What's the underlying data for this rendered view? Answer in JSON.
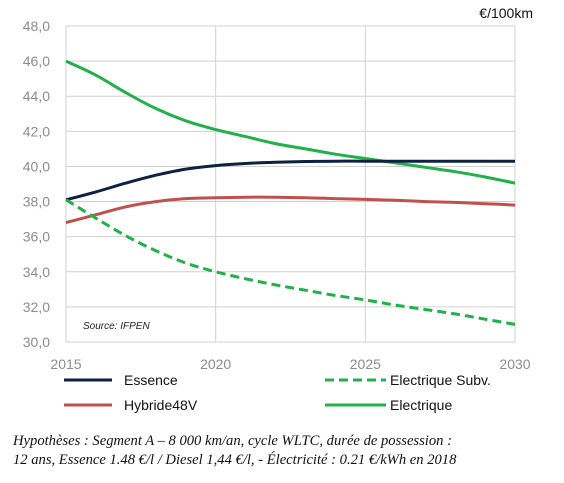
{
  "chart_data": {
    "type": "line",
    "unit": "€/100km",
    "source": "Source: IFPEN",
    "x_ticks": [
      "2015",
      "2020",
      "2025",
      "2030"
    ],
    "y_ticks": [
      "30,0",
      "32,0",
      "34,0",
      "36,0",
      "38,0",
      "40,0",
      "42,0",
      "44,0",
      "46,0",
      "48,0"
    ],
    "xlim": [
      2015,
      2030
    ],
    "ylim": [
      30,
      48
    ],
    "grid": true,
    "legend_position": "bottom",
    "series": [
      {
        "name": "Essence",
        "color": "#0d2240",
        "dash": "solid",
        "points": [
          [
            2015,
            38.1
          ],
          [
            2016,
            38.55
          ],
          [
            2017,
            39.05
          ],
          [
            2018,
            39.5
          ],
          [
            2019,
            39.85
          ],
          [
            2020,
            40.05
          ],
          [
            2021,
            40.17
          ],
          [
            2022,
            40.24
          ],
          [
            2023,
            40.28
          ],
          [
            2024,
            40.3
          ],
          [
            2025,
            40.3
          ],
          [
            2026,
            40.3
          ],
          [
            2027,
            40.3
          ],
          [
            2028,
            40.3
          ],
          [
            2029,
            40.3
          ],
          [
            2030,
            40.3
          ]
        ]
      },
      {
        "name": "Electrique Subv.",
        "color": "#21b04b",
        "dash": "dashed",
        "points": [
          [
            2015,
            38.1
          ],
          [
            2016,
            37.05
          ],
          [
            2017,
            36.05
          ],
          [
            2018,
            35.2
          ],
          [
            2019,
            34.5
          ],
          [
            2020,
            34.0
          ],
          [
            2021,
            33.6
          ],
          [
            2022,
            33.25
          ],
          [
            2023,
            32.95
          ],
          [
            2024,
            32.65
          ],
          [
            2025,
            32.4
          ],
          [
            2026,
            32.1
          ],
          [
            2027,
            31.85
          ],
          [
            2028,
            31.6
          ],
          [
            2029,
            31.3
          ],
          [
            2030,
            31.0
          ]
        ]
      },
      {
        "name": "Hybride48V",
        "color": "#c0504d",
        "dash": "solid",
        "points": [
          [
            2015,
            36.8
          ],
          [
            2016,
            37.25
          ],
          [
            2017,
            37.7
          ],
          [
            2018,
            38.0
          ],
          [
            2019,
            38.17
          ],
          [
            2020,
            38.22
          ],
          [
            2021,
            38.25
          ],
          [
            2022,
            38.25
          ],
          [
            2023,
            38.22
          ],
          [
            2024,
            38.17
          ],
          [
            2025,
            38.12
          ],
          [
            2026,
            38.07
          ],
          [
            2027,
            38.0
          ],
          [
            2028,
            37.95
          ],
          [
            2029,
            37.88
          ],
          [
            2030,
            37.8
          ]
        ]
      },
      {
        "name": "Electrique",
        "color": "#21b04b",
        "dash": "solid",
        "points": [
          [
            2015,
            46.0
          ],
          [
            2016,
            45.2
          ],
          [
            2017,
            44.2
          ],
          [
            2018,
            43.3
          ],
          [
            2019,
            42.6
          ],
          [
            2020,
            42.1
          ],
          [
            2021,
            41.7
          ],
          [
            2022,
            41.3
          ],
          [
            2023,
            41.0
          ],
          [
            2024,
            40.7
          ],
          [
            2025,
            40.45
          ],
          [
            2026,
            40.2
          ],
          [
            2027,
            39.95
          ],
          [
            2028,
            39.7
          ],
          [
            2029,
            39.4
          ],
          [
            2030,
            39.05
          ]
        ]
      }
    ]
  },
  "caption": {
    "line1": "Hypothèses : Segment A – 8 000 km/an, cycle WLTC, durée de possession :",
    "line2": "12 ans, Essence 1.48 €/l / Diesel 1,44  €/l, - Électricité : 0.21 €/kWh en 2018"
  }
}
